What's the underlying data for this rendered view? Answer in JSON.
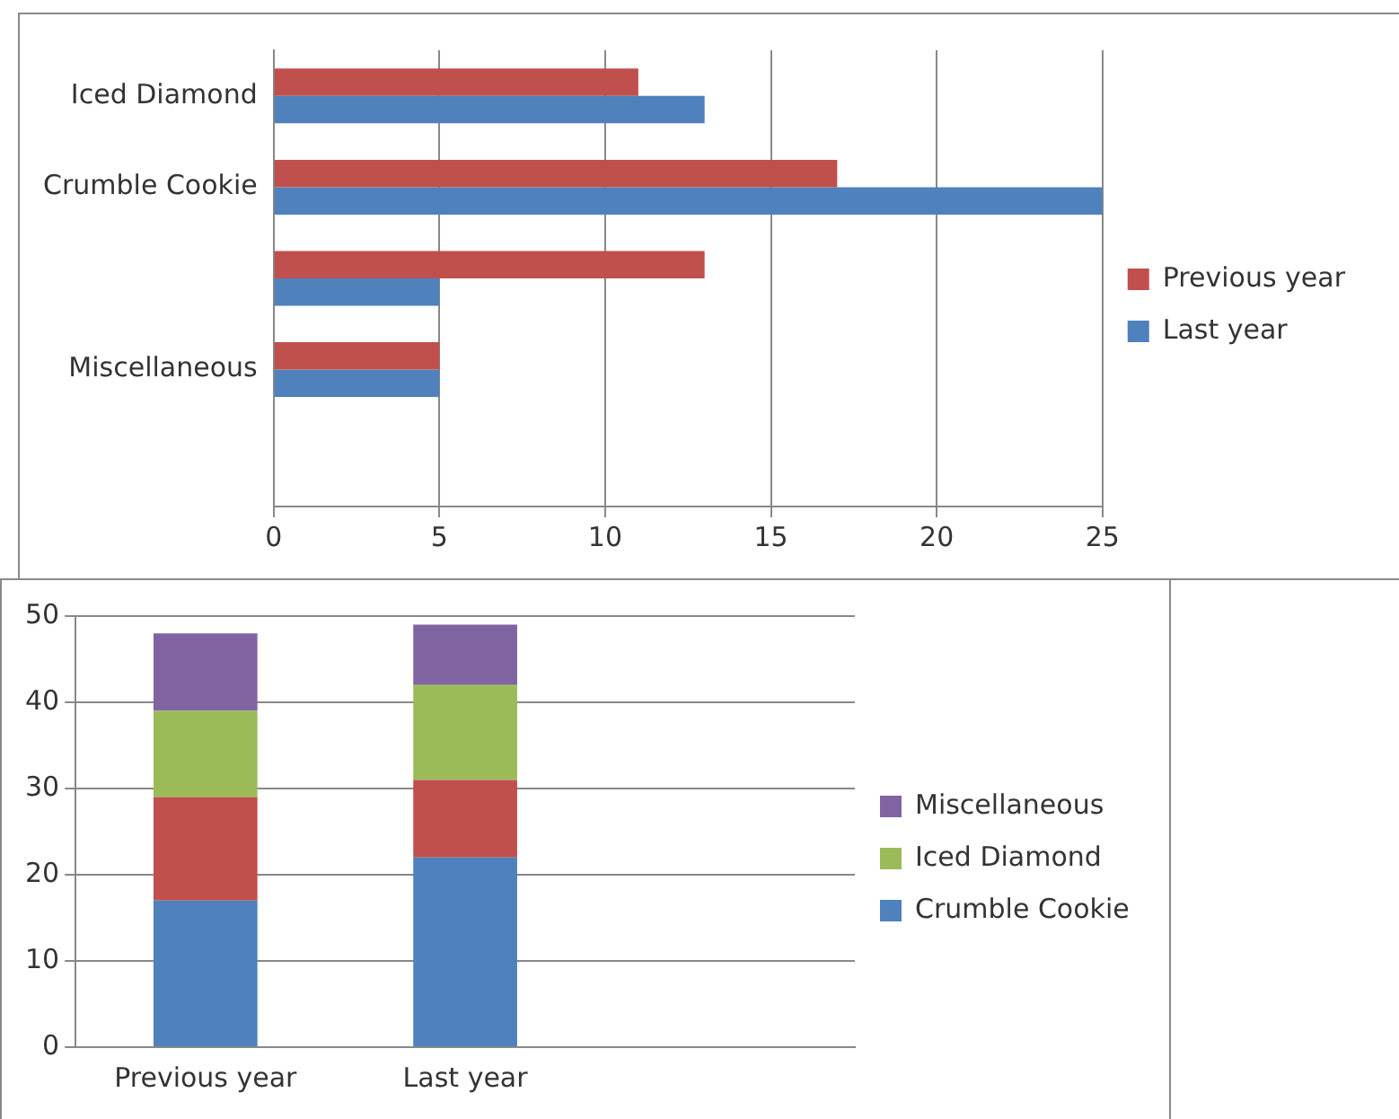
{
  "chart_data": [
    {
      "type": "bar",
      "orientation": "horizontal",
      "categories": [
        "Iced Diamond",
        "Crumble Cookie",
        null,
        "Miscellaneous",
        null
      ],
      "series": [
        {
          "name": "Previous year",
          "color": "#c0504d",
          "values": [
            11,
            17,
            13,
            5,
            null
          ]
        },
        {
          "name": "Last year",
          "color": "#4f81bd",
          "values": [
            13,
            25,
            5,
            5,
            null
          ]
        }
      ],
      "xlim": [
        0,
        25
      ],
      "xticks": [
        0,
        5,
        10,
        15,
        20,
        25
      ],
      "grid": "x",
      "legend": "right"
    },
    {
      "type": "bar",
      "stacked": true,
      "categories": [
        "Previous year",
        "Last year",
        null
      ],
      "series": [
        {
          "name": "Crumble Cookie",
          "color": "#4f81bd",
          "values": [
            17,
            22,
            null
          ]
        },
        {
          "color": "#c0504d",
          "values": [
            12,
            9,
            null
          ]
        },
        {
          "name": "Iced Diamond",
          "color": "#9bbb59",
          "values": [
            10,
            11,
            null
          ]
        },
        {
          "name": "Miscellaneous",
          "color": "#8064a2",
          "values": [
            9,
            7,
            null
          ]
        }
      ],
      "ylim": [
        0,
        50
      ],
      "yticks": [
        0,
        10,
        20,
        30,
        40,
        50
      ],
      "grid": "y",
      "legend": "right"
    }
  ]
}
